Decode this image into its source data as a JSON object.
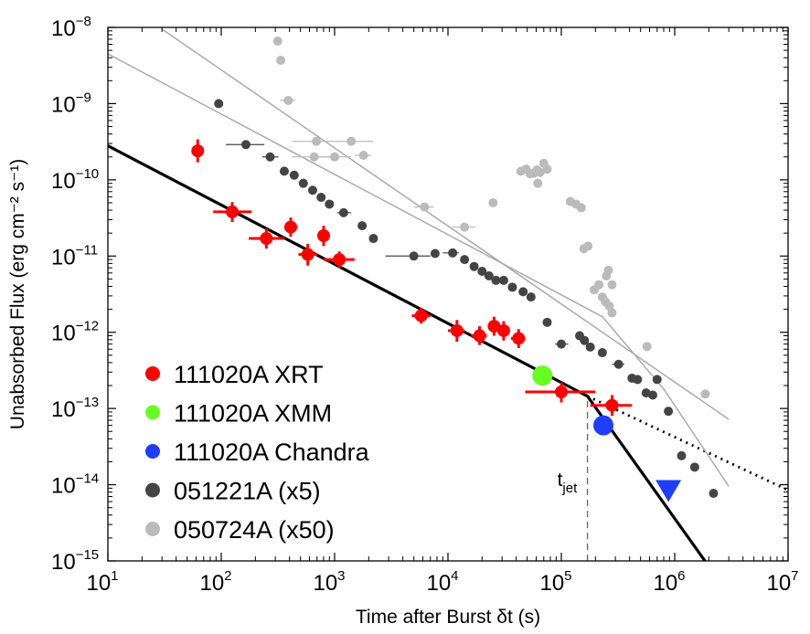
{
  "chart_data": {
    "type": "scatter",
    "xlabel": "Time after Burst δt (s)",
    "ylabel": "Unabsorbed Flux (erg cm⁻² s⁻¹)",
    "xscale": "log",
    "yscale": "log",
    "xlim": [
      10,
      10000000
    ],
    "ylim": [
      1e-15,
      1e-08
    ],
    "x_ticks": [
      {
        "base": "10",
        "exp": "1"
      },
      {
        "base": "10",
        "exp": "2"
      },
      {
        "base": "10",
        "exp": "3"
      },
      {
        "base": "10",
        "exp": "4"
      },
      {
        "base": "10",
        "exp": "5"
      },
      {
        "base": "10",
        "exp": "6"
      },
      {
        "base": "10",
        "exp": "7"
      }
    ],
    "y_ticks": [
      {
        "base": "10",
        "exp": "−15"
      },
      {
        "base": "10",
        "exp": "−14"
      },
      {
        "base": "10",
        "exp": "−13"
      },
      {
        "base": "10",
        "exp": "−12"
      },
      {
        "base": "10",
        "exp": "−11"
      },
      {
        "base": "10",
        "exp": "−10"
      },
      {
        "base": "10",
        "exp": "−9"
      },
      {
        "base": "10",
        "exp": "−8"
      }
    ],
    "grid": false,
    "legend_position": "bottom-left",
    "colors": {
      "xrt": "#ff0000",
      "xmm": "#66ff22",
      "chandra": "#1f3dff",
      "grb051221a": "#444444",
      "grb050724a": "#bbbbbb",
      "model": "#000000"
    },
    "series": [
      {
        "name": "111020A XRT",
        "marker": "circle",
        "points": [
          {
            "x": 62,
            "y": 2.4e-10,
            "x_lo": 62,
            "x_hi": 62,
            "y_lo": 1.7e-10,
            "y_hi": 3.4e-10
          },
          {
            "x": 125,
            "y": 3.8e-11,
            "x_lo": 85,
            "x_hi": 185,
            "y_lo": 2.8e-11,
            "y_hi": 5.1e-11
          },
          {
            "x": 250,
            "y": 1.7e-11,
            "x_lo": 175,
            "x_hi": 360,
            "y_lo": 1.25e-11,
            "y_hi": 2.3e-11
          },
          {
            "x": 410,
            "y": 2.4e-11,
            "x_lo": 360,
            "x_hi": 470,
            "y_lo": 1.8e-11,
            "y_hi": 3.2e-11
          },
          {
            "x": 580,
            "y": 1.05e-11,
            "x_lo": 480,
            "x_hi": 700,
            "y_lo": 7.5e-12,
            "y_hi": 1.45e-11
          },
          {
            "x": 800,
            "y": 1.85e-11,
            "x_lo": 730,
            "x_hi": 880,
            "y_lo": 1.35e-11,
            "y_hi": 2.5e-11
          },
          {
            "x": 1100,
            "y": 9e-12,
            "x_lo": 800,
            "x_hi": 1500,
            "y_lo": 7e-12,
            "y_hi": 1.15e-11
          },
          {
            "x": 5800,
            "y": 1.65e-12,
            "x_lo": 4800,
            "x_hi": 7000,
            "y_lo": 1.3e-12,
            "y_hi": 2.1e-12
          },
          {
            "x": 12000,
            "y": 1.05e-12,
            "x_lo": 10000,
            "x_hi": 14000,
            "y_lo": 7.5e-13,
            "y_hi": 1.45e-12
          },
          {
            "x": 19000,
            "y": 9e-13,
            "x_lo": 16000,
            "x_hi": 22000,
            "y_lo": 6.8e-13,
            "y_hi": 1.2e-12
          },
          {
            "x": 25500,
            "y": 1.2e-12,
            "x_lo": 24000,
            "x_hi": 27000,
            "y_lo": 9e-13,
            "y_hi": 1.6e-12
          },
          {
            "x": 31000,
            "y": 1.05e-12,
            "x_lo": 29000,
            "x_hi": 33000,
            "y_lo": 7.8e-13,
            "y_hi": 1.4e-12
          },
          {
            "x": 42000,
            "y": 8.3e-13,
            "x_lo": 36000,
            "x_hi": 48000,
            "y_lo": 6.2e-13,
            "y_hi": 1.1e-12
          },
          {
            "x": 100000,
            "y": 1.65e-13,
            "x_lo": 48000,
            "x_hi": 200000,
            "y_lo": 1.2e-13,
            "y_hi": 2.2e-13
          },
          {
            "x": 280000,
            "y": 1.1e-13,
            "x_lo": 180000,
            "x_hi": 420000,
            "y_lo": 8e-14,
            "y_hi": 1.5e-13
          }
        ]
      },
      {
        "name": "111020A XMM",
        "marker": "circle",
        "points": [
          {
            "x": 68000,
            "y": 2.7e-13
          }
        ]
      },
      {
        "name": "111020A Chandra",
        "marker": "circle",
        "points": [
          {
            "x": 235000,
            "y": 6e-14
          }
        ]
      },
      {
        "name": "051221A (x5)",
        "marker": "circle",
        "points": [
          {
            "x": 95,
            "y": 1e-09
          },
          {
            "x": 165,
            "y": 2.9e-10,
            "x_lo": 110,
            "x_hi": 240
          },
          {
            "x": 270,
            "y": 2e-10,
            "x_lo": 230,
            "x_hi": 320
          },
          {
            "x": 360,
            "y": 1.3e-10
          },
          {
            "x": 440,
            "y": 1.15e-10
          },
          {
            "x": 530,
            "y": 9e-11
          },
          {
            "x": 640,
            "y": 7.3e-11
          },
          {
            "x": 760,
            "y": 5.9e-11
          },
          {
            "x": 900,
            "y": 4.8e-11
          },
          {
            "x": 1200,
            "y": 3.7e-11,
            "x_lo": 1050,
            "x_hi": 1400
          },
          {
            "x": 1750,
            "y": 2.5e-11
          },
          {
            "x": 2200,
            "y": 1.7e-11
          },
          {
            "x": 5000,
            "y": 1e-11,
            "x_lo": 2800,
            "x_hi": 7000
          },
          {
            "x": 7700,
            "y": 1.08e-11
          },
          {
            "x": 11000,
            "y": 1.1e-11,
            "x_lo": 9000,
            "x_hi": 12500
          },
          {
            "x": 14000,
            "y": 9e-12
          },
          {
            "x": 17000,
            "y": 7.3e-12
          },
          {
            "x": 20000,
            "y": 6.3e-12
          },
          {
            "x": 23000,
            "y": 5.5e-12
          },
          {
            "x": 26500,
            "y": 4.8e-12
          },
          {
            "x": 31000,
            "y": 4.8e-12
          },
          {
            "x": 37000,
            "y": 3.9e-12
          },
          {
            "x": 46000,
            "y": 3.4e-12
          },
          {
            "x": 54000,
            "y": 2.9e-12
          },
          {
            "x": 75000,
            "y": 1.35e-12
          },
          {
            "x": 100000,
            "y": 7e-13,
            "x_lo": 88000,
            "x_hi": 115000
          },
          {
            "x": 145000,
            "y": 9e-13
          },
          {
            "x": 160000,
            "y": 7.8e-13
          },
          {
            "x": 180000,
            "y": 6.4e-13
          },
          {
            "x": 230000,
            "y": 5.4e-13
          },
          {
            "x": 320000,
            "y": 3.8e-13,
            "x_lo": 280000,
            "x_hi": 360000
          },
          {
            "x": 420000,
            "y": 2.5e-13
          },
          {
            "x": 470000,
            "y": 2.4e-13
          },
          {
            "x": 560000,
            "y": 1.6e-13
          },
          {
            "x": 640000,
            "y": 1.5e-13
          },
          {
            "x": 700000,
            "y": 2.4e-13
          },
          {
            "x": 880000,
            "y": 9.2e-14
          },
          {
            "x": 1150000,
            "y": 2.4e-14
          },
          {
            "x": 1500000,
            "y": 1.7e-14
          },
          {
            "x": 2200000,
            "y": 7.7e-15
          }
        ]
      },
      {
        "name": "050724A (x50)",
        "marker": "circle",
        "points": [
          {
            "x": 315,
            "y": 6.6e-09
          },
          {
            "x": 335,
            "y": 3.7e-09
          },
          {
            "x": 390,
            "y": 1.1e-09,
            "x_lo": 330,
            "x_hi": 450
          },
          {
            "x": 690,
            "y": 3.2e-10,
            "x_lo": 420,
            "x_hi": 1100
          },
          {
            "x": 660,
            "y": 2e-10,
            "x_lo": 420,
            "x_hi": 900
          },
          {
            "x": 1000,
            "y": 2e-10,
            "x_lo": 700,
            "x_hi": 1400
          },
          {
            "x": 1400,
            "y": 3.2e-10,
            "x_lo": 1050,
            "x_hi": 2200
          },
          {
            "x": 1800,
            "y": 2.1e-10,
            "x_lo": 1500,
            "x_hi": 2100
          },
          {
            "x": 6200,
            "y": 4.4e-11,
            "x_lo": 5000,
            "x_hi": 7500
          },
          {
            "x": 14000,
            "y": 2.4e-11,
            "x_lo": 11000,
            "x_hi": 17500
          },
          {
            "x": 25000,
            "y": 5e-11
          },
          {
            "x": 44000,
            "y": 1.3e-10
          },
          {
            "x": 49000,
            "y": 1.38e-10
          },
          {
            "x": 53000,
            "y": 1.2e-10
          },
          {
            "x": 57000,
            "y": 1.22e-10
          },
          {
            "x": 61000,
            "y": 1.35e-10
          },
          {
            "x": 65000,
            "y": 1.25e-10
          },
          {
            "x": 70000,
            "y": 1.65e-10
          },
          {
            "x": 75000,
            "y": 1.38e-10
          },
          {
            "x": 62000,
            "y": 9e-11
          },
          {
            "x": 120000,
            "y": 5.2e-11
          },
          {
            "x": 135000,
            "y": 4.8e-11
          },
          {
            "x": 150000,
            "y": 4.3e-11
          },
          {
            "x": 158000,
            "y": 1.25e-11
          },
          {
            "x": 172000,
            "y": 1.35e-11
          },
          {
            "x": 195000,
            "y": 3.6e-12
          },
          {
            "x": 215000,
            "y": 4.2e-12
          },
          {
            "x": 250000,
            "y": 5.5e-12
          },
          {
            "x": 260000,
            "y": 6.5e-12
          },
          {
            "x": 280000,
            "y": 4.2e-12
          },
          {
            "x": 230000,
            "y": 2.9e-12
          },
          {
            "x": 245000,
            "y": 2.5e-12
          },
          {
            "x": 265000,
            "y": 2.2e-12
          },
          {
            "x": 280000,
            "y": 1.8e-12
          },
          {
            "x": 570000,
            "y": 6.5e-13
          },
          {
            "x": 1860000,
            "y": 1.55e-13
          }
        ]
      }
    ],
    "upper_limit": {
      "x": 880000,
      "y": 8.5e-15
    },
    "model_lines": [
      {
        "style": "solid",
        "color": "#000000",
        "points": [
          [
            10,
            2.8e-10
          ],
          [
            170000,
            1.45e-13
          ],
          [
            1850000,
            1e-15
          ]
        ]
      },
      {
        "style": "dotted",
        "color": "#000000",
        "points": [
          [
            170000,
            1.45e-13
          ],
          [
            10000000,
            8.5e-15
          ]
        ]
      },
      {
        "style": "thin",
        "color": "#aaaaaa",
        "points": [
          [
            10,
            4.5e-09
          ],
          [
            230000,
            1.6e-12
          ],
          [
            800000,
            1.8e-13
          ],
          [
            3000000,
            9.5e-15
          ]
        ]
      },
      {
        "style": "thin",
        "color": "#aaaaaa",
        "points": [
          [
            30,
            9.5e-09
          ],
          [
            3000000,
            7.2e-14
          ]
        ]
      }
    ],
    "annotation": {
      "base": "t",
      "sub": "jet",
      "x": 170000
    }
  }
}
